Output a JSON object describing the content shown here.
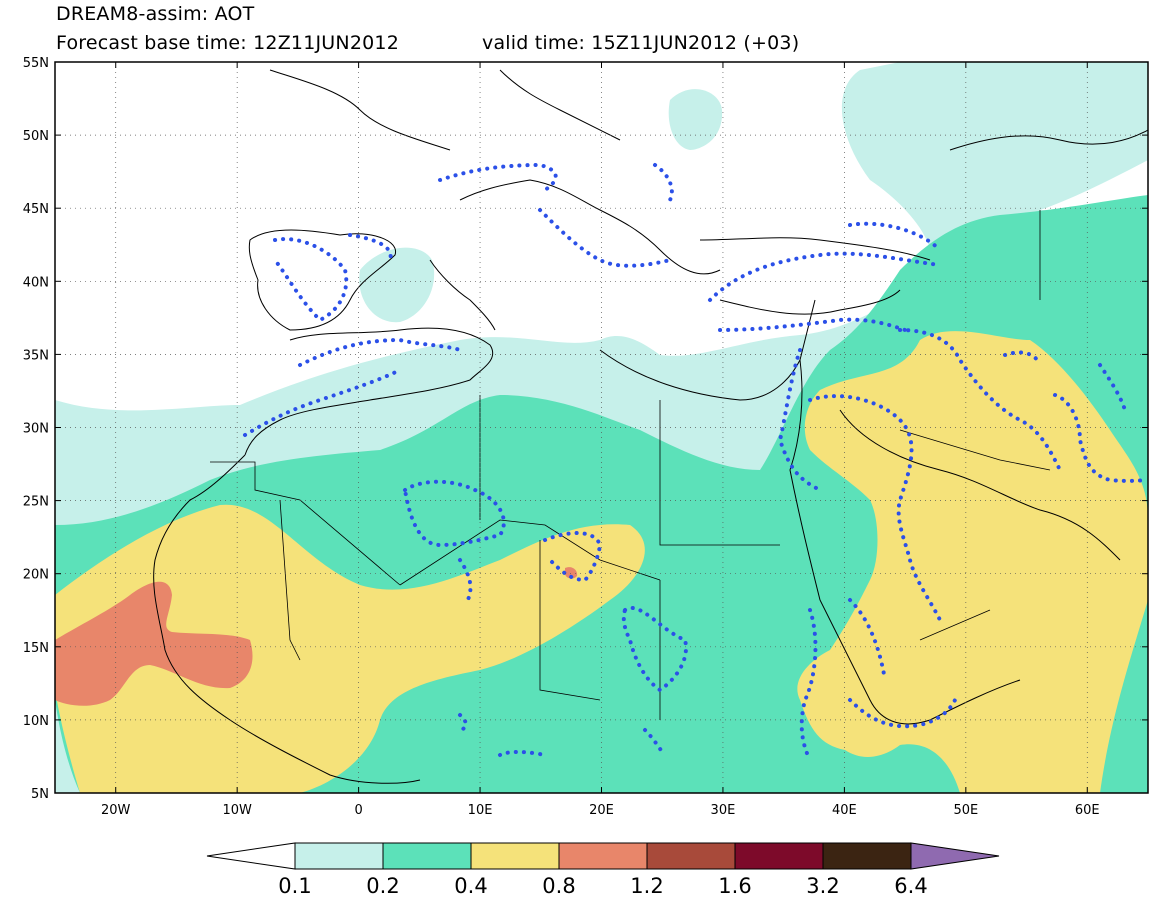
{
  "title": {
    "line1": "DREAM8-assim: AOT",
    "base": "Forecast base time: 12Z11JUN2012",
    "valid": "valid time: 15Z11JUN2012 (+03)"
  },
  "map": {
    "lon_range": [
      -25,
      65
    ],
    "lat_range": [
      5,
      55
    ],
    "lat_ticks": [
      "55N",
      "50N",
      "45N",
      "40N",
      "35N",
      "30N",
      "25N",
      "20N",
      "15N",
      "10N",
      "5N"
    ],
    "lon_ticks": [
      "20W",
      "10W",
      "0",
      "10E",
      "20E",
      "30E",
      "40E",
      "50E",
      "60E"
    ]
  },
  "colorbar": {
    "labels": [
      "0.1",
      "0.2",
      "0.4",
      "0.8",
      "1.2",
      "1.6",
      "3.2",
      "6.4"
    ],
    "colors": [
      "#ffffff",
      "#c6f0ea",
      "#5ce1b9",
      "#f5e27a",
      "#e8866a",
      "#a84a3a",
      "#7d0a2a",
      "#3b2412",
      "#8f6ab0"
    ]
  }
}
